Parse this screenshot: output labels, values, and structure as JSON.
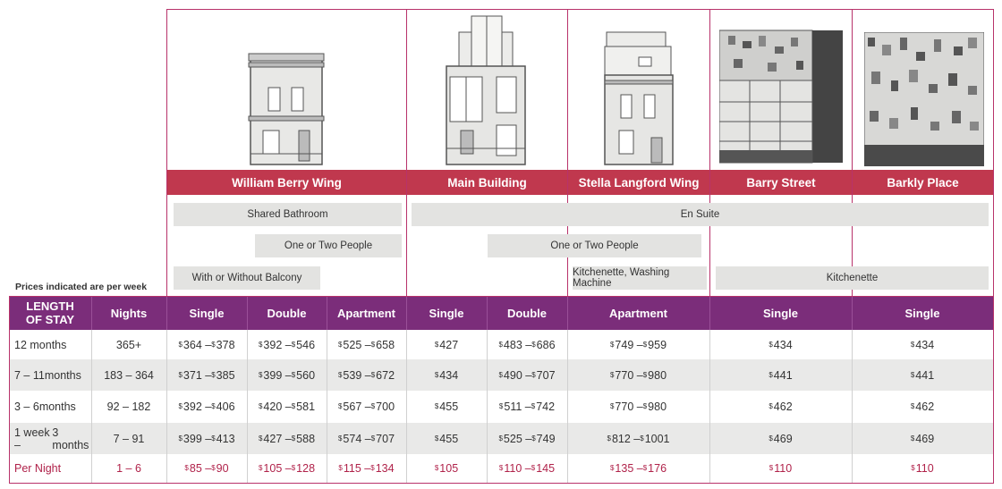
{
  "buildings": [
    {
      "name": "William Berry Wing",
      "icon": "terrace-house-icon"
    },
    {
      "name": "Main Building",
      "icon": "main-building-icon"
    },
    {
      "name": "Stella Langford Wing",
      "icon": "stella-wing-icon"
    },
    {
      "name": "Barry Street",
      "icon": "barry-street-icon"
    },
    {
      "name": "Barkly Place",
      "icon": "barkly-place-icon"
    }
  ],
  "features": {
    "shared_bathroom": "Shared Bathroom",
    "en_suite": "En Suite",
    "one_or_two_a": "One or Two People",
    "one_or_two_b": "One or Two People",
    "balcony": "With or Without Balcony",
    "kitchenette_washing": "Kitchenette, Washing Machine",
    "kitchenette": "Kitchenette"
  },
  "note": "Prices indicated are per week",
  "columns": {
    "length_line1": "LENGTH",
    "length_line2": "OF STAY",
    "nights": "Nights",
    "wb_single": "Single",
    "wb_double": "Double",
    "wb_apartment": "Apartment",
    "mb_single": "Single",
    "mb_double": "Double",
    "sl_apartment": "Apartment",
    "bs_single": "Single",
    "bp_single": "Single"
  },
  "rows": [
    {
      "length1": "12 months",
      "length2": "",
      "nights": "365+",
      "c": [
        [
          "364",
          "378"
        ],
        [
          "392",
          "546"
        ],
        [
          "525",
          "658"
        ],
        [
          "427"
        ],
        [
          "483",
          "686"
        ],
        [
          "749",
          "959"
        ],
        [
          "434"
        ],
        [
          "434"
        ]
      ]
    },
    {
      "length1": "7 – 11",
      "length2": "months",
      "nights": "183 – 364",
      "c": [
        [
          "371",
          "385"
        ],
        [
          "399",
          "560"
        ],
        [
          "539",
          "672"
        ],
        [
          "434"
        ],
        [
          "490",
          "707"
        ],
        [
          "770",
          "980"
        ],
        [
          "441"
        ],
        [
          "441"
        ]
      ]
    },
    {
      "length1": "3 – 6",
      "length2": "months",
      "nights": "92 – 182",
      "c": [
        [
          "392",
          "406"
        ],
        [
          "420",
          "581"
        ],
        [
          "567",
          "700"
        ],
        [
          "455"
        ],
        [
          "511",
          "742"
        ],
        [
          "770",
          "980"
        ],
        [
          "462"
        ],
        [
          "462"
        ]
      ]
    },
    {
      "length1": "1 week –",
      "length2": "3 months",
      "nights": "7 – 91",
      "c": [
        [
          "399",
          "413"
        ],
        [
          "427",
          "588"
        ],
        [
          "574",
          "707"
        ],
        [
          "455"
        ],
        [
          "525",
          "749"
        ],
        [
          "812",
          "1001"
        ],
        [
          "469"
        ],
        [
          "469"
        ]
      ]
    },
    {
      "length1": "Per Night",
      "length2": "",
      "nights": "1 – 6",
      "c": [
        [
          "85",
          "90"
        ],
        [
          "105",
          "128"
        ],
        [
          "115",
          "134"
        ],
        [
          "105"
        ],
        [
          "110",
          "145"
        ],
        [
          "135",
          "176"
        ],
        [
          "110"
        ],
        [
          "110"
        ]
      ]
    }
  ],
  "currency": "$",
  "dash": " – "
}
